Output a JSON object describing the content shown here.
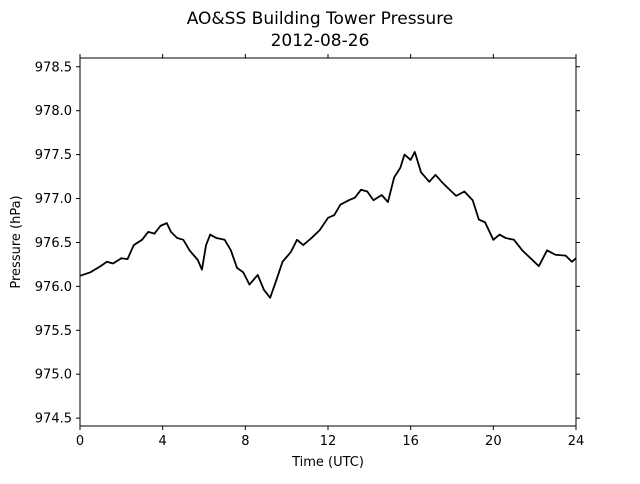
{
  "chart_data": {
    "type": "line",
    "title": "AO&SS Building Tower Pressure",
    "subtitle": "2012-08-26",
    "x_label": "Time (UTC)",
    "y_label": "Pressure (hPa)",
    "x": [
      0,
      0.5,
      1.0,
      1.3,
      1.6,
      2.0,
      2.3,
      2.6,
      3.0,
      3.3,
      3.6,
      3.9,
      4.2,
      4.4,
      4.7,
      5.0,
      5.3,
      5.7,
      5.9,
      6.1,
      6.3,
      6.6,
      7.0,
      7.3,
      7.6,
      7.9,
      8.2,
      8.6,
      8.9,
      9.2,
      9.5,
      9.8,
      10.2,
      10.5,
      10.8,
      11.2,
      11.6,
      12.0,
      12.3,
      12.6,
      13.0,
      13.3,
      13.6,
      13.9,
      14.2,
      14.6,
      14.9,
      15.2,
      15.5,
      15.7,
      16.0,
      16.2,
      16.5,
      16.9,
      17.2,
      17.5,
      17.8,
      18.2,
      18.6,
      19.0,
      19.3,
      19.6,
      20.0,
      20.3,
      20.6,
      21.0,
      21.4,
      21.8,
      22.2,
      22.6,
      23.0,
      23.5,
      23.8,
      24.0
    ],
    "series": [
      {
        "color": "#000000",
        "values": [
          976.12,
          976.16,
          976.23,
          976.28,
          976.26,
          976.32,
          976.31,
          976.47,
          976.53,
          976.62,
          976.6,
          976.69,
          976.72,
          976.62,
          976.55,
          976.53,
          976.41,
          976.3,
          976.19,
          976.47,
          976.59,
          976.55,
          976.53,
          976.41,
          976.21,
          976.16,
          976.02,
          976.13,
          975.96,
          975.87,
          976.07,
          976.28,
          976.39,
          976.53,
          976.47,
          976.55,
          976.64,
          976.78,
          976.81,
          976.93,
          976.98,
          977.01,
          977.1,
          977.08,
          976.98,
          977.04,
          976.96,
          977.24,
          977.35,
          977.5,
          977.44,
          977.53,
          977.3,
          977.19,
          977.27,
          977.19,
          977.12,
          977.03,
          977.08,
          976.98,
          976.76,
          976.73,
          976.53,
          976.59,
          976.55,
          976.53,
          976.41,
          976.32,
          976.23,
          976.41,
          976.36,
          976.35,
          976.28,
          976.32
        ]
      }
    ],
    "xlim": [
      0,
      24
    ],
    "xticks": [
      0,
      4,
      8,
      12,
      16,
      20,
      24
    ],
    "ylim": [
      974.41,
      978.6
    ],
    "yticks": [
      974.5,
      {
        "value": 975,
        "label": "975.0"
      },
      975.5,
      {
        "value": 976,
        "label": "976.0"
      },
      976.5,
      {
        "value": 977,
        "label": "977.0"
      },
      977.5,
      {
        "value": 978,
        "label": "978.0"
      },
      978.5
    ]
  }
}
